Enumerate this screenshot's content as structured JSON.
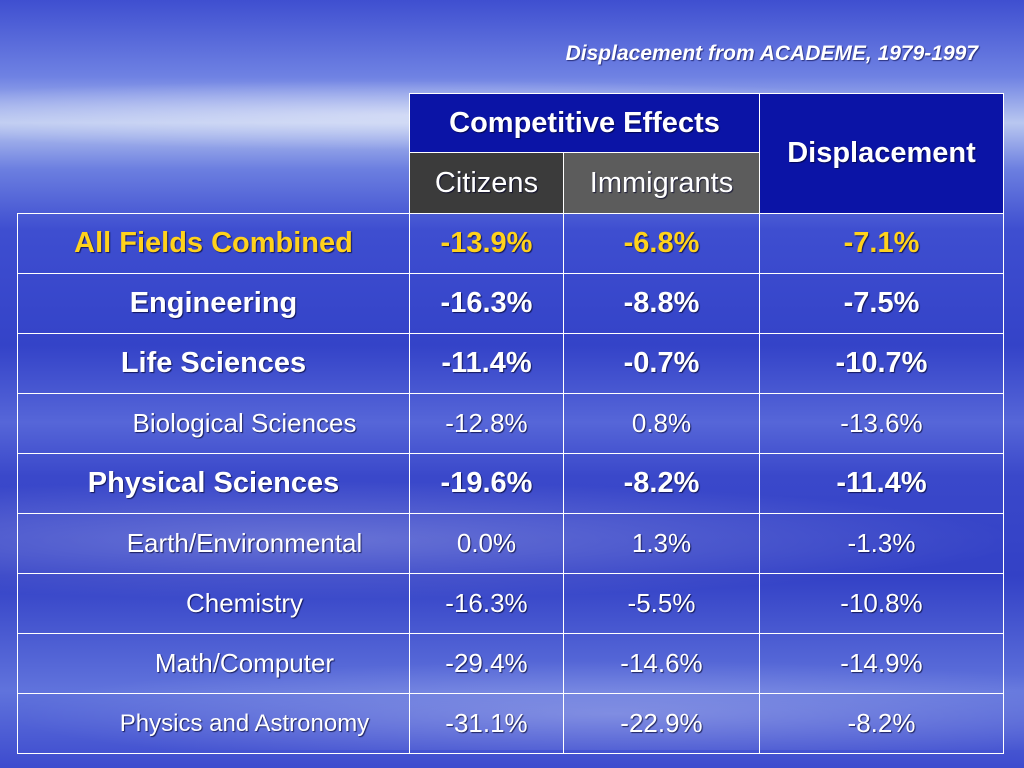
{
  "title": "Displacement from ACADEME, 1979-1997",
  "colors": {
    "highlight": "#ffd21c",
    "header_bg": "#0b14a6",
    "citizens_bg": "#3b3b3b",
    "immigrants_bg": "#5c5c5c"
  },
  "chart_data": {
    "type": "table",
    "title": "Displacement from ACADEME, 1979-1997",
    "header_group": "Competitive Effects",
    "columns": [
      "Citizens",
      "Immigrants",
      "Displacement"
    ],
    "rows": [
      {
        "field": "All Fields Combined",
        "values": [
          "-13.9%",
          "-6.8%",
          "-7.1%"
        ],
        "level": "main",
        "highlight": true
      },
      {
        "field": "Engineering",
        "values": [
          "-16.3%",
          "-8.8%",
          "-7.5%"
        ],
        "level": "main"
      },
      {
        "field": "Life Sciences",
        "values": [
          "-11.4%",
          "-0.7%",
          "-10.7%"
        ],
        "level": "main"
      },
      {
        "field": "Biological Sciences",
        "values": [
          "-12.8%",
          "0.8%",
          "-13.6%"
        ],
        "level": "sub"
      },
      {
        "field": "Physical Sciences",
        "values": [
          "-19.6%",
          "-8.2%",
          "-11.4%"
        ],
        "level": "main"
      },
      {
        "field": "Earth/Environmental",
        "values": [
          "0.0%",
          "1.3%",
          "-1.3%"
        ],
        "level": "sub"
      },
      {
        "field": "Chemistry",
        "values": [
          "-16.3%",
          "-5.5%",
          "-10.8%"
        ],
        "level": "sub"
      },
      {
        "field": "Math/Computer",
        "values": [
          "-29.4%",
          "-14.6%",
          "-14.9%"
        ],
        "level": "sub"
      },
      {
        "field": "Physics and Astronomy",
        "values": [
          "-31.1%",
          "-22.9%",
          "-8.2%"
        ],
        "level": "sub"
      }
    ]
  }
}
